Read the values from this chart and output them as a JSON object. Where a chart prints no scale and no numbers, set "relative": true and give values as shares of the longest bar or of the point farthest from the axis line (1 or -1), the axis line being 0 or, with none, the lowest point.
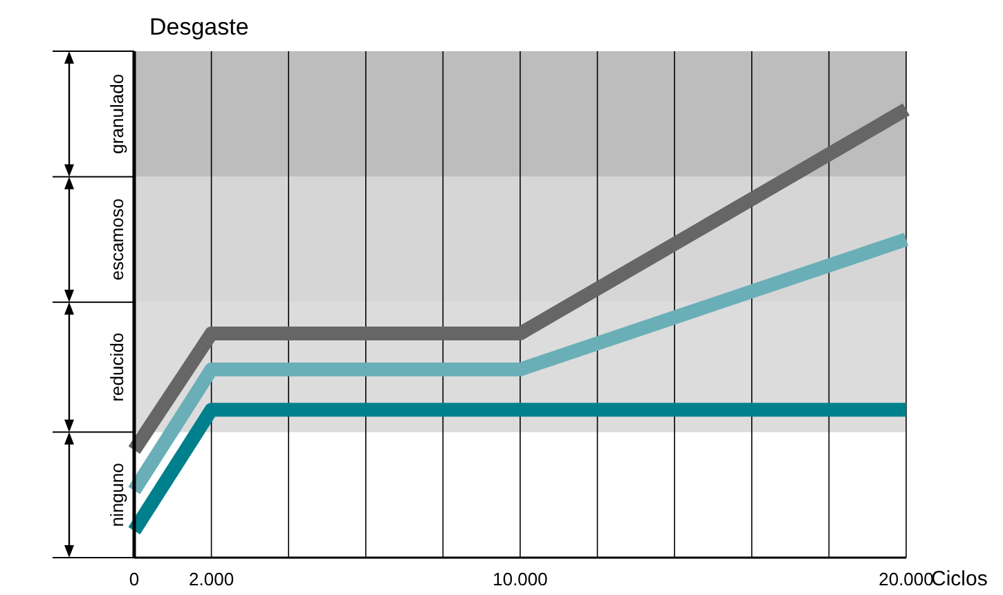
{
  "chart_data": {
    "type": "line",
    "ylabel": "Desgaste",
    "xlabel": "Ciclos",
    "relative": true,
    "annotations": [
      "ninguno"
    ],
    "x": [
      0,
      2000,
      10000,
      20000
    ],
    "series": [
      {
        "color": "#666666",
        "values": [
          0.24,
          0.5,
          0.5,
          1
        ]
      },
      {
        "color": "#6aafb8",
        "values": [
          0.15,
          0.42,
          0.42,
          0.71
        ]
      },
      {
        "color": "#00808c",
        "values": [
          0.06,
          0.33,
          0.33,
          0.33
        ]
      }
    ],
    "xlim": [
      0,
      20000
    ],
    "xticks": [
      0,
      {
        "value": 2000,
        "label": "2.000"
      },
      {
        "value": 4000,
        "label": null
      },
      {
        "value": 6000,
        "label": null
      },
      {
        "value": 8000,
        "label": null
      },
      {
        "value": 10000,
        "label": "10.000"
      },
      {
        "value": 12000,
        "label": null
      },
      {
        "value": 14000,
        "label": null
      },
      {
        "value": 16000,
        "label": null
      },
      {
        "value": 18000,
        "label": null
      },
      {
        "value": 20000,
        "label": "20.000"
      }
    ],
    "bands": [
      {
        "axis": "y",
        "from": 0.28,
        "to": 0.57,
        "label": "reducido",
        "color": "#dcdcdc"
      },
      {
        "axis": "y",
        "from": 0.57,
        "to": 0.85,
        "label": "escamoso",
        "color": "#d6d6d6"
      },
      {
        "axis": "y",
        "from": 0.85,
        "to": 1.13,
        "label": "granulado",
        "color": "#bdbdbd"
      }
    ],
    "grid": "x",
    "marker": "none",
    "line_style": "solid"
  }
}
